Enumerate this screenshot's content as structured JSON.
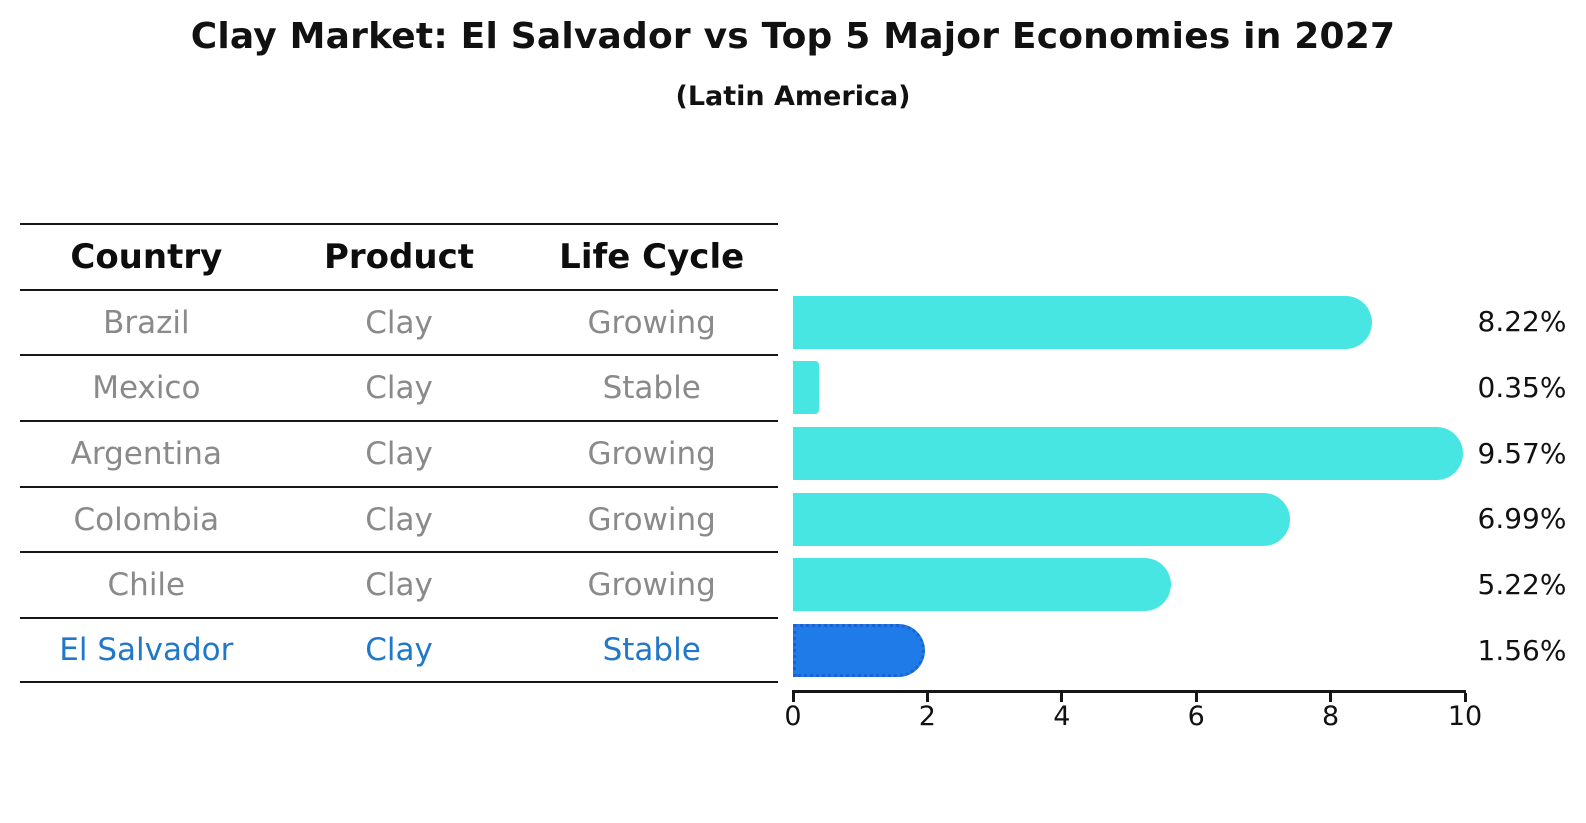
{
  "header": {
    "title": "Clay Market: El Salvador vs Top 5 Major Economies in 2027",
    "subtitle": "(Latin America)"
  },
  "table": {
    "columns": [
      "Country",
      "Product",
      "Life Cycle"
    ]
  },
  "rows": [
    {
      "country": "Brazil",
      "product": "Clay",
      "life_cycle": "Growing",
      "value": 8.22,
      "label": "8.22%",
      "highlight": false
    },
    {
      "country": "Mexico",
      "product": "Clay",
      "life_cycle": "Stable",
      "value": 0.35,
      "label": "0.35%",
      "highlight": false
    },
    {
      "country": "Argentina",
      "product": "Clay",
      "life_cycle": "Growing",
      "value": 9.57,
      "label": "9.57%",
      "highlight": false
    },
    {
      "country": "Colombia",
      "product": "Clay",
      "life_cycle": "Growing",
      "value": 6.99,
      "label": "6.99%",
      "highlight": false
    },
    {
      "country": "Chile",
      "product": "Clay",
      "life_cycle": "Growing",
      "value": 5.22,
      "label": "5.22%",
      "highlight": false
    },
    {
      "country": "El Salvador",
      "product": "Clay",
      "life_cycle": "Stable",
      "value": 1.56,
      "label": "1.56%",
      "highlight": true
    }
  ],
  "chart_data": {
    "type": "bar",
    "orientation": "horizontal",
    "title": "Clay Market: El Salvador vs Top 5 Major Economies in 2027",
    "subtitle": "(Latin America)",
    "categories": [
      "Brazil",
      "Mexico",
      "Argentina",
      "Colombia",
      "Chile",
      "El Salvador"
    ],
    "values": [
      8.22,
      0.35,
      9.57,
      6.99,
      5.22,
      1.56
    ],
    "value_labels": [
      "8.22%",
      "0.35%",
      "9.57%",
      "6.99%",
      "5.22%",
      "1.56%"
    ],
    "unit": "%",
    "xlim": [
      0,
      10
    ],
    "x_ticks": [
      0,
      2,
      4,
      6,
      8,
      10
    ],
    "grid": false,
    "legend": "none",
    "bar_color": "#47e6e2",
    "highlight_index": 5,
    "highlight_color": "#1e7be8",
    "highlight_border_color": "#1b63d1",
    "highlight_text_color": "#2278c8"
  }
}
